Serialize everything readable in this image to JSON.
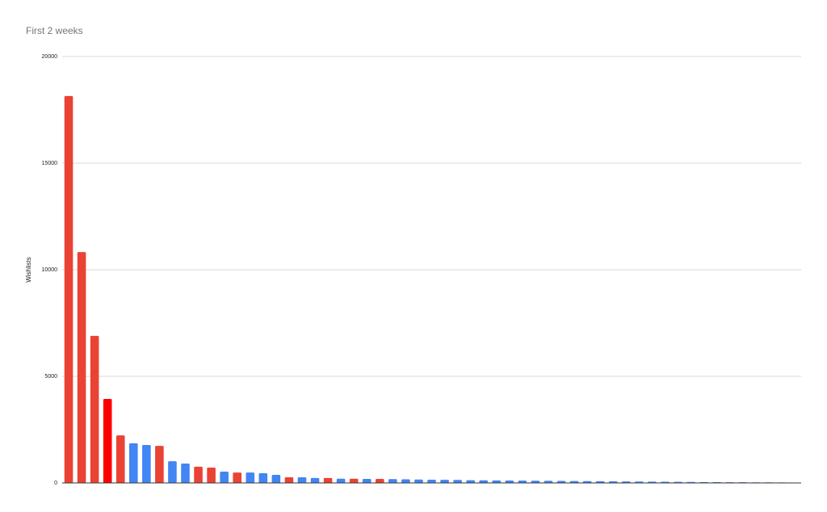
{
  "chart_data": {
    "type": "bar",
    "title": "First 2 weeks",
    "y_label": "Wishlists",
    "values": [
      18150,
      10830,
      6900,
      3940,
      2230,
      1860,
      1780,
      1740,
      1020,
      910,
      760,
      720,
      530,
      490,
      490,
      455,
      380,
      265,
      265,
      230,
      230,
      200,
      200,
      190,
      190,
      180,
      170,
      160,
      150,
      145,
      140,
      130,
      125,
      120,
      115,
      110,
      105,
      100,
      95,
      90,
      85,
      80,
      75,
      70,
      65,
      60,
      55,
      50,
      45,
      40,
      38,
      35,
      32,
      30,
      28,
      25,
      20
    ],
    "colors": [
      "#ea4335",
      "#ea4335",
      "#ea4335",
      "#ff0000",
      "#ea4335",
      "#4285f4",
      "#4285f4",
      "#ea4335",
      "#4285f4",
      "#4285f4",
      "#ea4335",
      "#ea4335",
      "#4285f4",
      "#ea4335",
      "#4285f4",
      "#4285f4",
      "#4285f4",
      "#ea4335",
      "#4285f4",
      "#4285f4",
      "#ea4335",
      "#4285f4",
      "#ea4335",
      "#4285f4",
      "#ea4335",
      "#4285f4",
      "#4285f4",
      "#4285f4",
      "#4285f4",
      "#4285f4",
      "#4285f4",
      "#4285f4",
      "#4285f4",
      "#4285f4",
      "#4285f4",
      "#4285f4",
      "#4285f4",
      "#4285f4",
      "#4285f4",
      "#4285f4",
      "#4285f4",
      "#4285f4",
      "#4285f4",
      "#4285f4",
      "#4285f4",
      "#4285f4",
      "#4285f4",
      "#4285f4",
      "#4285f4",
      "#4285f4",
      "#4285f4",
      "#4285f4",
      "#4285f4",
      "#4285f4",
      "#4285f4",
      "#4285f4",
      "#4285f4"
    ],
    "ylim": [
      0,
      20000
    ],
    "yticks": [
      0,
      5000,
      10000,
      15000,
      20000
    ],
    "grid": true
  }
}
